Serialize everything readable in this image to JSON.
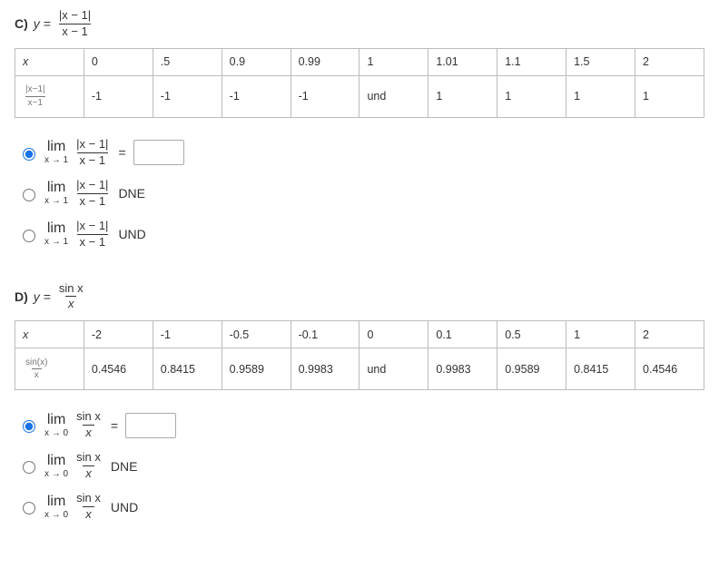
{
  "sectionC": {
    "label": "C)",
    "func_num": "|x − 1|",
    "func_den": "x − 1",
    "table": {
      "row_x_label": "x",
      "row_x": [
        "0",
        ".5",
        "0.9",
        "0.99",
        "1",
        "1.01",
        "1.1",
        "1.5",
        "2"
      ],
      "row_fx_num": "|x−1|",
      "row_fx_den": "x−1",
      "row_fx": [
        "-1",
        "-1",
        "-1",
        "-1",
        "und",
        "1",
        "1",
        "1",
        "1"
      ]
    },
    "options": {
      "lim_word": "lim",
      "lim_sub": "x → 1",
      "frac_num": "|x − 1|",
      "frac_den": "x − 1",
      "equals": "=",
      "dne": "DNE",
      "und": "UND",
      "selected": "0"
    }
  },
  "sectionD": {
    "label": "D)",
    "func_num": "sin x",
    "func_den": "x",
    "table": {
      "row_x_label": "x",
      "row_x": [
        "-2",
        "-1",
        "-0.5",
        "-0.1",
        "0",
        "0.1",
        "0.5",
        "1",
        "2"
      ],
      "row_fx_num": "sin(x)",
      "row_fx_den": "x",
      "row_fx": [
        "0.4546",
        "0.8415",
        "0.9589",
        "0.9983",
        "und",
        "0.9983",
        "0.9589",
        "0.8415",
        "0.4546"
      ]
    },
    "options": {
      "lim_word": "lim",
      "lim_sub": "x → 0",
      "frac_num": "sin x",
      "frac_den": "x",
      "equals": "=",
      "dne": "DNE",
      "und": "UND",
      "selected": "0"
    }
  }
}
